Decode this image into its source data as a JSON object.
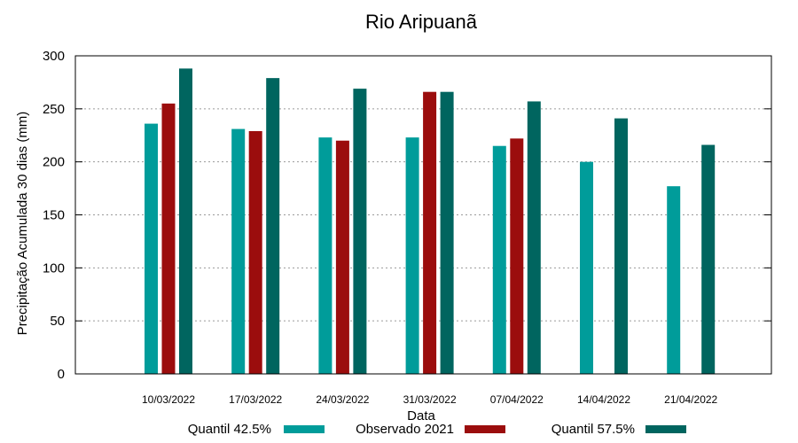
{
  "colors": {
    "quantil_425": "#009c9a",
    "observado": "#9b0d0d",
    "quantil_575": "#00655f"
  },
  "chart_data": {
    "type": "bar",
    "title": "Rio Aripuanã",
    "xlabel": "Data",
    "ylabel": "Precipitação Acumulada 30 dias (mm)",
    "ylim": [
      0,
      300
    ],
    "yticks": [
      "0",
      "50",
      "100",
      "150",
      "200",
      "250",
      "300"
    ],
    "grid": true,
    "legend_placement": "bottom",
    "categories": [
      "10/03/2022",
      "17/03/2022",
      "24/03/2022",
      "31/03/2022",
      "07/04/2022",
      "14/04/2022",
      "21/04/2022"
    ],
    "series": [
      {
        "name": "Quantil 42.5%",
        "color": "#009c9a",
        "values": [
          236,
          231,
          223,
          223,
          215,
          200,
          177
        ]
      },
      {
        "name": "Observado 2021",
        "color": "#9b0d0d",
        "values": [
          255,
          229,
          220,
          266,
          222,
          null,
          null
        ]
      },
      {
        "name": "Quantil 57.5%",
        "color": "#00655f",
        "values": [
          288,
          279,
          269,
          266,
          257,
          241,
          216
        ]
      }
    ]
  }
}
